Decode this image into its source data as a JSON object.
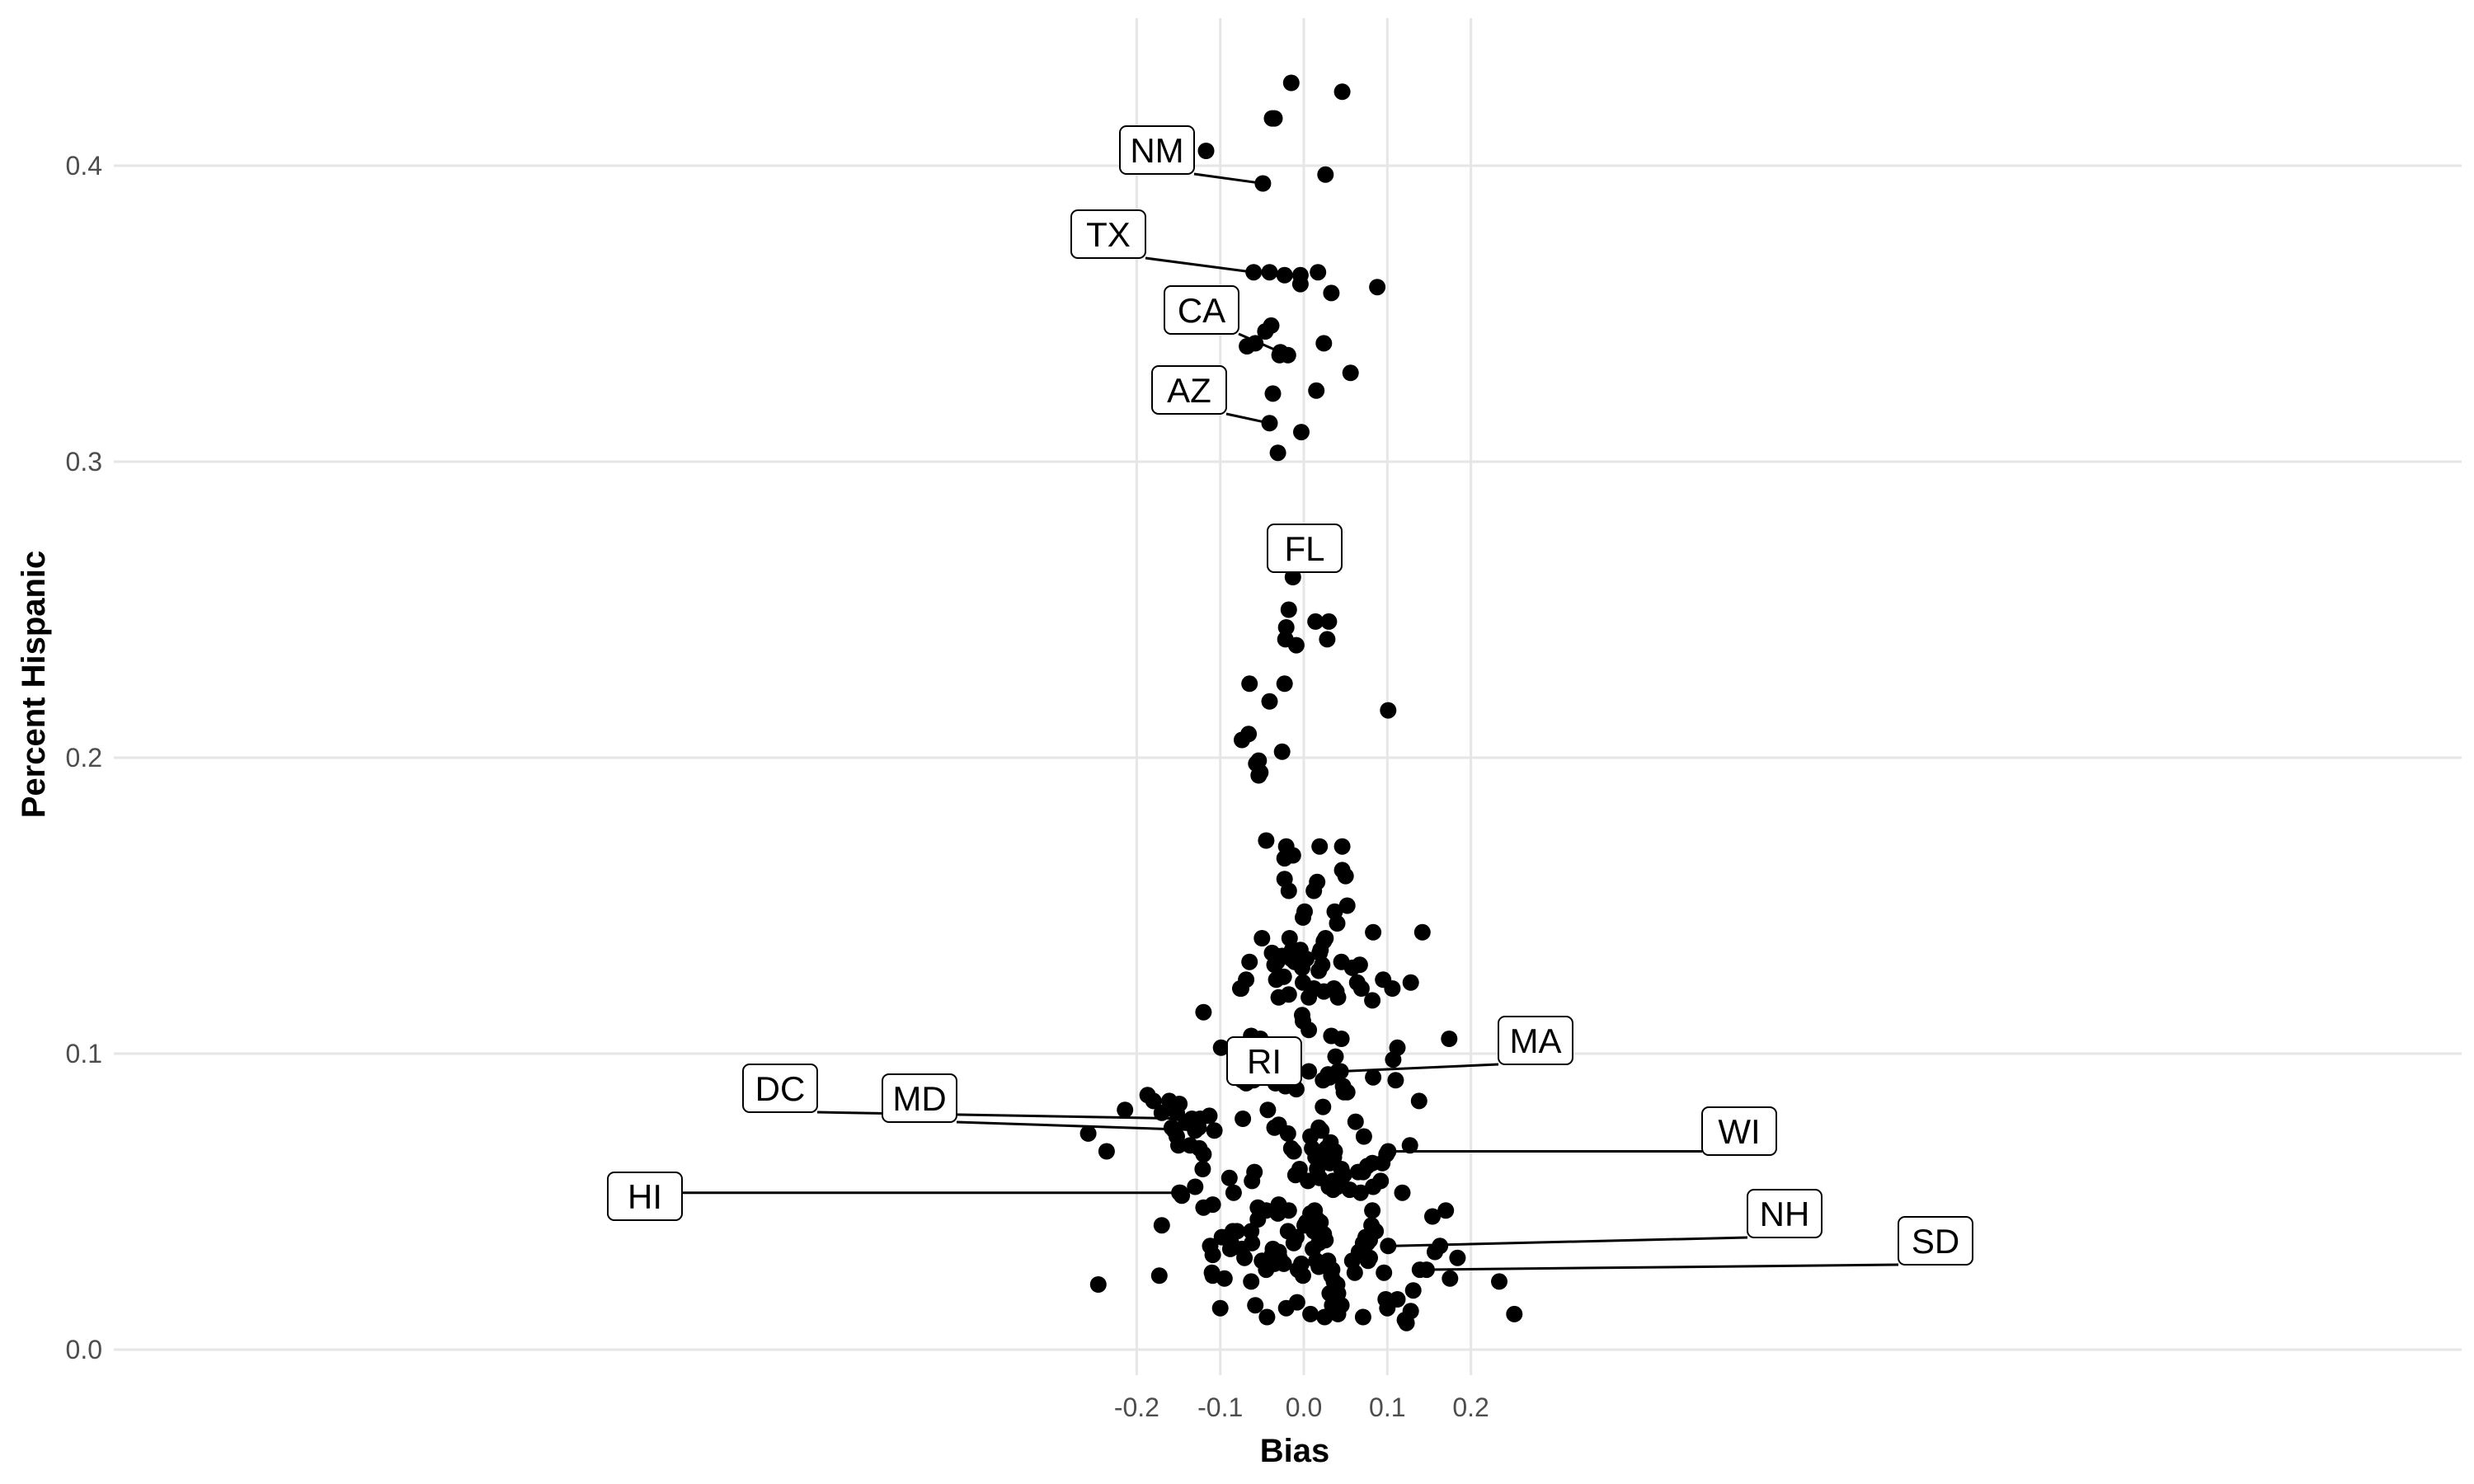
{
  "chart_data": {
    "type": "scatter",
    "title": "",
    "xlabel": "Bias",
    "ylabel": "Percent Hispanic",
    "xlim": [
      -0.28,
      0.28
    ],
    "ylim": [
      -0.01,
      0.45
    ],
    "x_ticks": [
      -0.2,
      -0.1,
      0.0,
      0.1,
      0.2
    ],
    "x_tick_labels": [
      "-0.2",
      "-0.1",
      "0.0",
      "0.1",
      "0.2"
    ],
    "y_ticks": [
      0.0,
      0.1,
      0.2,
      0.3,
      0.4
    ],
    "y_tick_labels": [
      "0.0",
      "0.1",
      "0.2",
      "0.3",
      "0.4"
    ],
    "grid": true,
    "point_color": "#000000",
    "labeled_points": [
      {
        "label": "NM",
        "x": -0.049,
        "y": 0.394
      },
      {
        "label": "TX",
        "x": -0.06,
        "y": 0.364
      },
      {
        "label": "CA",
        "x": -0.028,
        "y": 0.337
      },
      {
        "label": "AZ",
        "x": -0.041,
        "y": 0.313
      },
      {
        "label": "FL",
        "x": -0.013,
        "y": 0.261
      },
      {
        "label": "RI",
        "x": -0.019,
        "y": 0.094
      },
      {
        "label": "MA",
        "x": 0.044,
        "y": 0.094
      },
      {
        "label": "DC",
        "x": -0.134,
        "y": 0.078
      },
      {
        "label": "MD",
        "x": -0.107,
        "y": 0.074
      },
      {
        "label": "HI",
        "x": -0.148,
        "y": 0.053
      },
      {
        "label": "WI",
        "x": 0.101,
        "y": 0.067
      },
      {
        "label": "NH",
        "x": 0.101,
        "y": 0.035
      },
      {
        "label": "SD",
        "x": 0.139,
        "y": 0.027
      }
    ],
    "points": [
      [
        -0.015,
        0.428
      ],
      [
        0.046,
        0.425
      ],
      [
        -0.117,
        0.405
      ],
      [
        -0.038,
        0.416
      ],
      [
        -0.035,
        0.416
      ],
      [
        0.026,
        0.397
      ],
      [
        -0.041,
        0.364
      ],
      [
        -0.023,
        0.363
      ],
      [
        -0.004,
        0.363
      ],
      [
        -0.004,
        0.36
      ],
      [
        0.017,
        0.364
      ],
      [
        0.088,
        0.359
      ],
      [
        0.033,
        0.357
      ],
      [
        -0.046,
        0.344
      ],
      [
        -0.039,
        0.346
      ],
      [
        -0.068,
        0.339
      ],
      [
        -0.058,
        0.34
      ],
      [
        -0.029,
        0.336
      ],
      [
        -0.019,
        0.336
      ],
      [
        0.024,
        0.34
      ],
      [
        -0.037,
        0.323
      ],
      [
        0.015,
        0.324
      ],
      [
        0.056,
        0.33
      ],
      [
        -0.003,
        0.31
      ],
      [
        -0.031,
        0.303
      ],
      [
        -0.018,
        0.25
      ],
      [
        -0.021,
        0.244
      ],
      [
        -0.022,
        0.24
      ],
      [
        -0.009,
        0.238
      ],
      [
        0.014,
        0.246
      ],
      [
        0.03,
        0.246
      ],
      [
        0.028,
        0.24
      ],
      [
        -0.065,
        0.225
      ],
      [
        -0.041,
        0.219
      ],
      [
        -0.023,
        0.225
      ],
      [
        -0.074,
        0.206
      ],
      [
        -0.066,
        0.208
      ],
      [
        -0.057,
        0.198
      ],
      [
        -0.054,
        0.199
      ],
      [
        -0.052,
        0.195
      ],
      [
        -0.054,
        0.194
      ],
      [
        -0.026,
        0.202
      ],
      [
        0.101,
        0.216
      ],
      [
        -0.045,
        0.172
      ],
      [
        -0.023,
        0.166
      ],
      [
        -0.021,
        0.17
      ],
      [
        -0.013,
        0.167
      ],
      [
        -0.023,
        0.159
      ],
      [
        -0.018,
        0.155
      ],
      [
        0.019,
        0.17
      ],
      [
        0.046,
        0.17
      ],
      [
        0.046,
        0.162
      ],
      [
        0.05,
        0.16
      ],
      [
        0.012,
        0.155
      ],
      [
        0.016,
        0.158
      ],
      [
        0.052,
        0.15
      ],
      [
        0.037,
        0.148
      ],
      [
        0.04,
        0.144
      ],
      [
        0.001,
        0.148
      ],
      [
        -0.001,
        0.146
      ],
      [
        -0.05,
        0.139
      ],
      [
        -0.033,
        0.133
      ],
      [
        -0.038,
        0.134
      ],
      [
        -0.035,
        0.13
      ],
      [
        -0.032,
        0.131
      ],
      [
        -0.026,
        0.133
      ],
      [
        -0.017,
        0.139
      ],
      [
        -0.014,
        0.135
      ],
      [
        -0.011,
        0.131
      ],
      [
        -0.015,
        0.132
      ],
      [
        -0.009,
        0.134
      ],
      [
        -0.004,
        0.135
      ],
      [
        -0.002,
        0.129
      ],
      [
        0.003,
        0.132
      ],
      [
        -0.065,
        0.131
      ],
      [
        -0.069,
        0.125
      ],
      [
        -0.076,
        0.122
      ],
      [
        -0.075,
        0.122
      ],
      [
        -0.033,
        0.125
      ],
      [
        -0.03,
        0.119
      ],
      [
        -0.018,
        0.12
      ],
      [
        -0.024,
        0.126
      ],
      [
        -0.001,
        0.124
      ],
      [
        0.006,
        0.119
      ],
      [
        0.012,
        0.122
      ],
      [
        0.018,
        0.128
      ],
      [
        0.022,
        0.13
      ],
      [
        0.024,
        0.138
      ],
      [
        0.026,
        0.139
      ],
      [
        0.02,
        0.135
      ],
      [
        0.019,
        0.134
      ],
      [
        0.036,
        0.122
      ],
      [
        0.039,
        0.121
      ],
      [
        0.041,
        0.119
      ],
      [
        0.024,
        0.121
      ],
      [
        0.045,
        0.131
      ],
      [
        0.058,
        0.129
      ],
      [
        0.064,
        0.124
      ],
      [
        0.067,
        0.13
      ],
      [
        0.069,
        0.122
      ],
      [
        0.083,
        0.141
      ],
      [
        0.082,
        0.118
      ],
      [
        0.095,
        0.125
      ],
      [
        0.106,
        0.122
      ],
      [
        0.112,
        0.102
      ],
      [
        0.107,
        0.098
      ],
      [
        0.128,
        0.124
      ],
      [
        0.142,
        0.141
      ],
      [
        0.174,
        0.105
      ],
      [
        -0.12,
        0.114
      ],
      [
        -0.099,
        0.102
      ],
      [
        -0.063,
        0.106
      ],
      [
        -0.066,
        0.103
      ],
      [
        -0.074,
        0.103
      ],
      [
        -0.052,
        0.105
      ],
      [
        -0.045,
        0.097
      ],
      [
        -0.041,
        0.097
      ],
      [
        -0.032,
        0.098
      ],
      [
        -0.002,
        0.113
      ],
      [
        -0.001,
        0.111
      ],
      [
        0.006,
        0.108
      ],
      [
        0.033,
        0.106
      ],
      [
        0.038,
        0.099
      ],
      [
        0.045,
        0.105
      ],
      [
        -0.074,
        0.091
      ],
      [
        -0.069,
        0.09
      ],
      [
        -0.06,
        0.091
      ],
      [
        -0.053,
        0.094
      ],
      [
        -0.034,
        0.09
      ],
      [
        -0.034,
        0.092
      ],
      [
        -0.025,
        0.093
      ],
      [
        -0.022,
        0.089
      ],
      [
        -0.009,
        0.088
      ],
      [
        0.006,
        0.094
      ],
      [
        0.023,
        0.091
      ],
      [
        0.029,
        0.093
      ],
      [
        0.031,
        0.092
      ],
      [
        0.037,
        0.093
      ],
      [
        0.041,
        0.094
      ],
      [
        0.047,
        0.089
      ],
      [
        0.048,
        0.087
      ],
      [
        0.052,
        0.087
      ],
      [
        0.083,
        0.092
      ],
      [
        0.11,
        0.091
      ],
      [
        0.138,
        0.084
      ],
      [
        -0.187,
        0.086
      ],
      [
        -0.18,
        0.084
      ],
      [
        -0.161,
        0.084
      ],
      [
        -0.149,
        0.083
      ],
      [
        -0.214,
        0.081
      ],
      [
        -0.17,
        0.08
      ],
      [
        -0.152,
        0.08
      ],
      [
        -0.141,
        0.077
      ],
      [
        -0.158,
        0.075
      ],
      [
        -0.155,
        0.074
      ],
      [
        -0.152,
        0.072
      ],
      [
        -0.124,
        0.078
      ],
      [
        -0.113,
        0.079
      ],
      [
        -0.073,
        0.078
      ],
      [
        -0.043,
        0.081
      ],
      [
        -0.035,
        0.075
      ],
      [
        -0.03,
        0.076
      ],
      [
        -0.015,
        0.068
      ],
      [
        -0.012,
        0.067
      ],
      [
        0.008,
        0.072
      ],
      [
        0.018,
        0.075
      ],
      [
        0.023,
        0.082
      ],
      [
        0.021,
        0.074
      ],
      [
        0.032,
        0.07
      ],
      [
        0.037,
        0.067
      ],
      [
        0.062,
        0.077
      ],
      [
        0.072,
        0.072
      ],
      [
        -0.258,
        0.073
      ],
      [
        -0.236,
        0.067
      ],
      [
        -0.15,
        0.069
      ],
      [
        -0.136,
        0.069
      ],
      [
        -0.126,
        0.075
      ],
      [
        -0.13,
        0.074
      ],
      [
        -0.125,
        0.068
      ],
      [
        -0.12,
        0.066
      ],
      [
        -0.13,
        0.055
      ],
      [
        -0.121,
        0.061
      ],
      [
        -0.109,
        0.049
      ],
      [
        -0.12,
        0.048
      ],
      [
        -0.089,
        0.058
      ],
      [
        -0.084,
        0.053
      ],
      [
        -0.062,
        0.057
      ],
      [
        -0.059,
        0.06
      ],
      [
        -0.055,
        0.048
      ],
      [
        -0.055,
        0.044
      ],
      [
        -0.045,
        0.047
      ],
      [
        -0.031,
        0.046
      ],
      [
        -0.03,
        0.049
      ],
      [
        -0.018,
        0.047
      ],
      [
        -0.01,
        0.059
      ],
      [
        -0.005,
        0.061
      ],
      [
        0.01,
        0.068
      ],
      [
        0.014,
        0.065
      ],
      [
        0.016,
        0.061
      ],
      [
        0.019,
        0.058
      ],
      [
        0.023,
        0.065
      ],
      [
        0.025,
        0.066
      ],
      [
        0.027,
        0.068
      ],
      [
        0.031,
        0.063
      ],
      [
        0.036,
        0.065
      ],
      [
        0.03,
        0.055
      ],
      [
        0.035,
        0.054
      ],
      [
        0.04,
        0.055
      ],
      [
        0.043,
        0.056
      ],
      [
        0.045,
        0.061
      ],
      [
        0.048,
        0.059
      ],
      [
        0.055,
        0.054
      ],
      [
        0.065,
        0.06
      ],
      [
        0.082,
        0.063
      ],
      [
        0.094,
        0.063
      ],
      [
        0.099,
        0.066
      ],
      [
        0.092,
        0.057
      ],
      [
        0.083,
        0.055
      ],
      [
        0.076,
        0.062
      ],
      [
        0.127,
        0.069
      ],
      [
        0.154,
        0.045
      ],
      [
        0.17,
        0.047
      ],
      [
        -0.085,
        0.04
      ],
      [
        -0.09,
        0.038
      ],
      [
        -0.092,
        0.038
      ],
      [
        -0.087,
        0.036
      ],
      [
        -0.088,
        0.034
      ],
      [
        -0.08,
        0.04
      ],
      [
        -0.074,
        0.034
      ],
      [
        -0.063,
        0.04
      ],
      [
        -0.062,
        0.036
      ],
      [
        -0.05,
        0.03
      ],
      [
        -0.045,
        0.027
      ],
      [
        -0.037,
        0.034
      ],
      [
        -0.038,
        0.032
      ],
      [
        -0.035,
        0.029
      ],
      [
        -0.03,
        0.033
      ],
      [
        -0.029,
        0.031
      ],
      [
        -0.024,
        0.029
      ],
      [
        -0.019,
        0.04
      ],
      [
        -0.012,
        0.036
      ],
      [
        -0.009,
        0.038
      ],
      [
        -0.007,
        0.027
      ],
      [
        -0.003,
        0.029
      ],
      [
        -0.001,
        0.025
      ],
      [
        0.001,
        0.042
      ],
      [
        0.003,
        0.043
      ],
      [
        0.008,
        0.046
      ],
      [
        0.01,
        0.045
      ],
      [
        0.012,
        0.04
      ],
      [
        0.013,
        0.047
      ],
      [
        0.016,
        0.044
      ],
      [
        0.018,
        0.036
      ],
      [
        0.02,
        0.043
      ],
      [
        0.024,
        0.039
      ],
      [
        0.026,
        0.037
      ],
      [
        0.029,
        0.03
      ],
      [
        0.029,
        0.028
      ],
      [
        0.033,
        0.025
      ],
      [
        0.034,
        0.027
      ],
      [
        0.036,
        0.023
      ],
      [
        0.038,
        0.022
      ],
      [
        0.04,
        0.022
      ],
      [
        0.041,
        0.019
      ],
      [
        0.04,
        0.016
      ],
      [
        0.041,
        0.012
      ],
      [
        0.045,
        0.015
      ],
      [
        0.058,
        0.03
      ],
      [
        0.061,
        0.026
      ],
      [
        0.066,
        0.033
      ],
      [
        0.071,
        0.036
      ],
      [
        0.074,
        0.038
      ],
      [
        0.076,
        0.036
      ],
      [
        0.079,
        0.037
      ],
      [
        0.081,
        0.042
      ],
      [
        0.077,
        0.03
      ],
      [
        0.079,
        0.031
      ],
      [
        0.082,
        0.047
      ],
      [
        0.086,
        0.04
      ],
      [
        0.096,
        0.026
      ],
      [
        0.098,
        0.017
      ],
      [
        0.1,
        0.014
      ],
      [
        0.112,
        0.017
      ],
      [
        0.118,
        0.053
      ],
      [
        0.121,
        0.01
      ],
      [
        0.123,
        0.009
      ],
      [
        0.128,
        0.013
      ],
      [
        0.131,
        0.02
      ],
      [
        0.147,
        0.027
      ],
      [
        0.157,
        0.033
      ],
      [
        0.163,
        0.035
      ],
      [
        0.175,
        0.024
      ],
      [
        0.184,
        0.031
      ],
      [
        0.234,
        0.023
      ],
      [
        0.252,
        0.012
      ],
      [
        -0.109,
        0.032
      ],
      [
        -0.112,
        0.035
      ],
      [
        -0.11,
        0.026
      ],
      [
        -0.109,
        0.025
      ],
      [
        -0.1,
        0.014
      ],
      [
        -0.098,
        0.038
      ],
      [
        -0.095,
        0.024
      ],
      [
        -0.071,
        0.031
      ],
      [
        -0.063,
        0.023
      ],
      [
        -0.058,
        0.015
      ],
      [
        -0.044,
        0.011
      ],
      [
        -0.021,
        0.014
      ],
      [
        -0.008,
        0.016
      ],
      [
        0.008,
        0.012
      ],
      [
        0.011,
        0.034
      ],
      [
        0.015,
        0.03
      ],
      [
        0.018,
        0.028
      ],
      [
        0.025,
        0.011
      ],
      [
        0.031,
        0.019
      ],
      [
        0.034,
        0.015
      ],
      [
        0.071,
        0.011
      ],
      [
        -0.246,
        0.022
      ],
      [
        -0.173,
        0.025
      ],
      [
        -0.17,
        0.042
      ],
      [
        -0.149,
        0.053
      ],
      [
        -0.146,
        0.052
      ],
      [
        -0.019,
        0.073
      ],
      [
        0.005,
        0.057
      ],
      [
        0.035,
        0.057
      ],
      [
        0.068,
        0.053
      ],
      [
        0.071,
        0.06
      ]
    ]
  }
}
